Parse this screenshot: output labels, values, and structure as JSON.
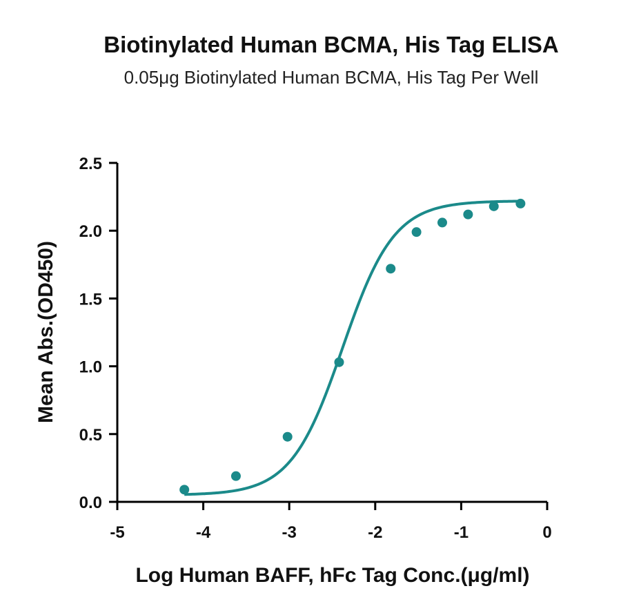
{
  "chart_data": {
    "type": "scatter",
    "title": "Biotinylated Human BCMA, His Tag ELISA",
    "subtitle": "0.05μg Biotinylated Human BCMA, His Tag Per Well",
    "xlabel": "Log Human BAFF, hFc Tag Conc.(μg/ml)",
    "ylabel": "Mean Abs.(OD450)",
    "xlim": [
      -5,
      0
    ],
    "ylim": [
      0,
      2.5
    ],
    "x_ticks": [
      -5,
      -4,
      -3,
      -2,
      -1,
      0
    ],
    "x_tick_labels": [
      "-5",
      "-4",
      "-3",
      "-2",
      "-1",
      "0"
    ],
    "y_ticks": [
      0,
      0.5,
      1.0,
      1.5,
      2.0,
      2.5
    ],
    "y_tick_labels": [
      "0.0",
      "0.5",
      "1.0",
      "1.5",
      "2.0",
      "2.5"
    ],
    "color": "#1b8a8a",
    "grid": false,
    "series": [
      {
        "x": [
          -4.22,
          -3.62,
          -3.02,
          -2.42,
          -1.82,
          -1.52,
          -1.22,
          -0.92,
          -0.62,
          -0.31
        ],
        "y": [
          0.09,
          0.19,
          0.48,
          1.03,
          1.72,
          1.99,
          2.06,
          2.12,
          2.18,
          2.2
        ]
      }
    ],
    "fit_curve": {
      "type": "4PL",
      "bottom": 0.05,
      "top": 2.22,
      "log_ec50": -2.38,
      "hill": 1.45,
      "x_range": [
        -4.22,
        -0.31
      ]
    }
  }
}
